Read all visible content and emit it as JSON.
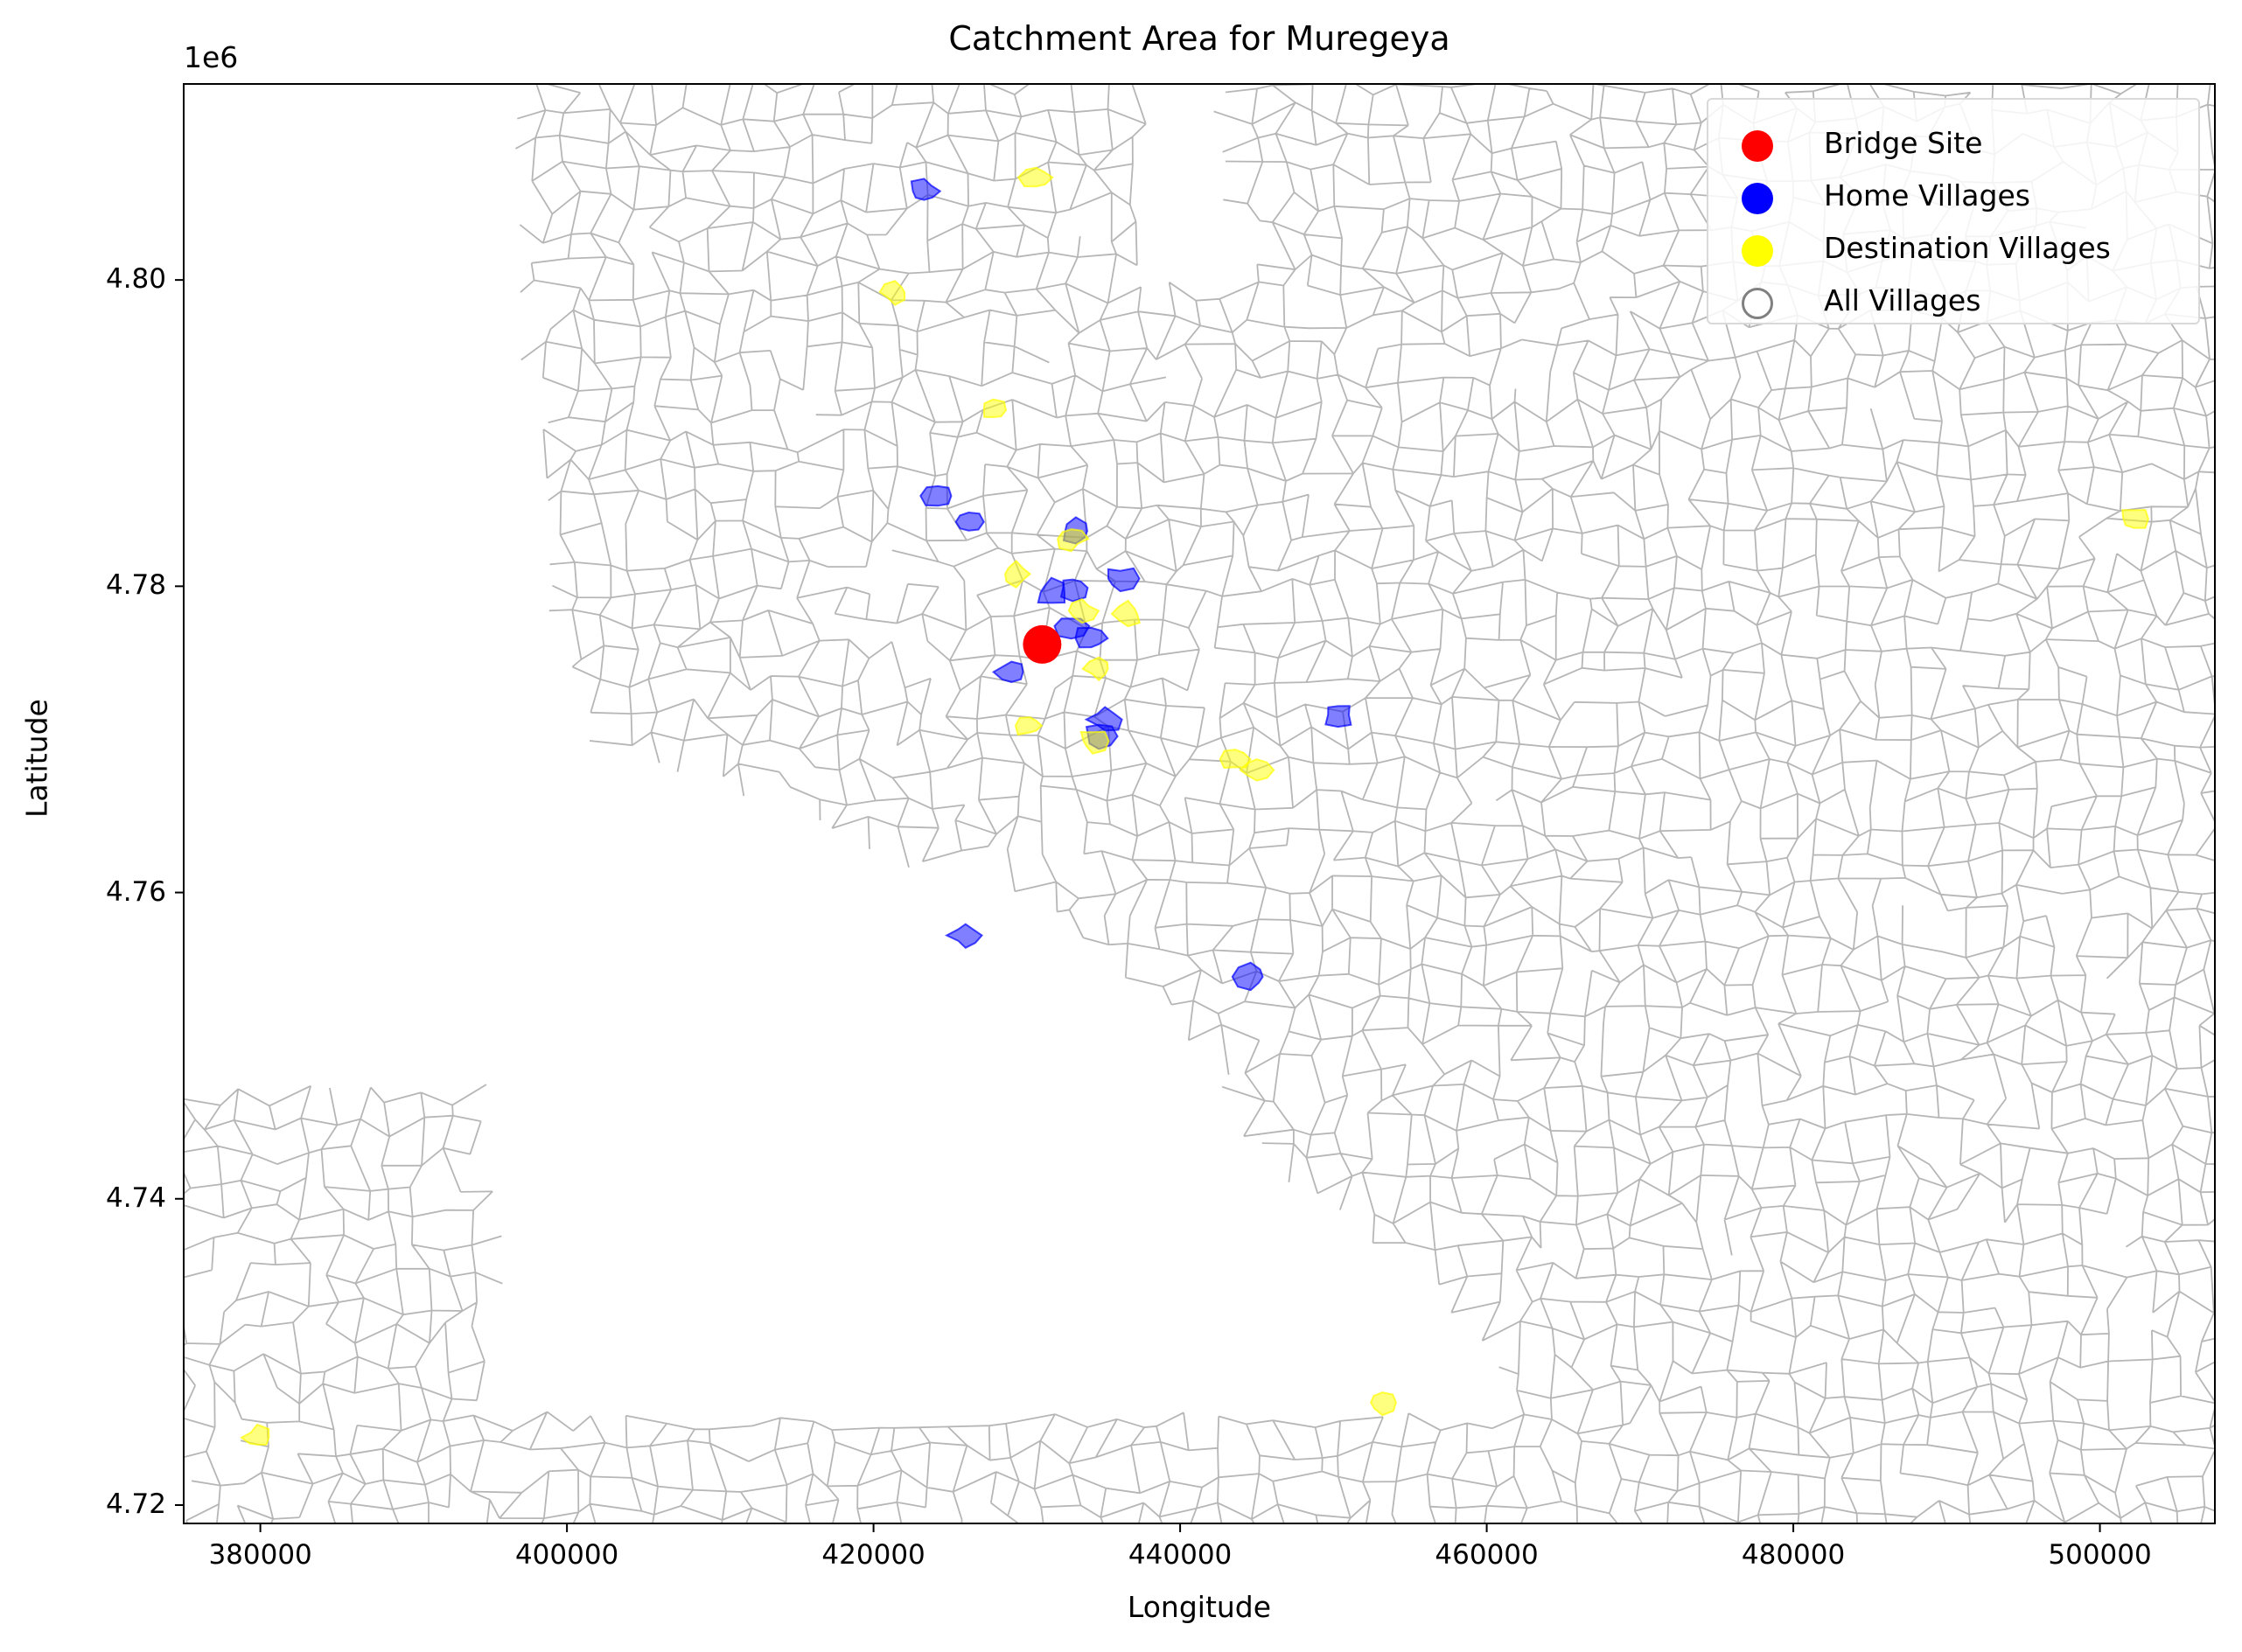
{
  "chart_data": {
    "type": "map",
    "title": "Catchment Area for Muregeya",
    "xlabel": "Longitude",
    "ylabel": "Latitude",
    "y_offset_label": "1e6",
    "xlim": [
      375000,
      507500
    ],
    "ylim": [
      4718800,
      4812800
    ],
    "x_ticks": [
      {
        "value": 380000,
        "label": "380000"
      },
      {
        "value": 400000,
        "label": "400000"
      },
      {
        "value": 420000,
        "label": "420000"
      },
      {
        "value": 440000,
        "label": "440000"
      },
      {
        "value": 460000,
        "label": "460000"
      },
      {
        "value": 480000,
        "label": "480000"
      },
      {
        "value": 500000,
        "label": "500000"
      }
    ],
    "y_ticks": [
      {
        "value": 4720000,
        "label": "4.72"
      },
      {
        "value": 4740000,
        "label": "4.74"
      },
      {
        "value": 4760000,
        "label": "4.76"
      },
      {
        "value": 4780000,
        "label": "4.78"
      },
      {
        "value": 4800000,
        "label": "4.80"
      }
    ],
    "legend": {
      "placement": "top-right",
      "entries": [
        {
          "label": "Bridge Site",
          "color": "#ff0000",
          "style": "filled"
        },
        {
          "label": "Home Villages",
          "color": "#0000ff",
          "style": "filled"
        },
        {
          "label": "Destination Villages",
          "color": "#ffff00",
          "style": "filled"
        },
        {
          "label": "All Villages",
          "color": "#808080",
          "style": "hollow"
        }
      ]
    },
    "bridge_site": {
      "x": 431000,
      "y": 4776200
    },
    "home_villages": [
      {
        "x": 423300,
        "y": 4805800
      },
      {
        "x": 424200,
        "y": 4785900
      },
      {
        "x": 426200,
        "y": 4784200
      },
      {
        "x": 433200,
        "y": 4783600
      },
      {
        "x": 436100,
        "y": 4780500
      },
      {
        "x": 431600,
        "y": 4779600
      },
      {
        "x": 433000,
        "y": 4779900
      },
      {
        "x": 434200,
        "y": 4776600
      },
      {
        "x": 429000,
        "y": 4774400
      },
      {
        "x": 432900,
        "y": 4777400
      },
      {
        "x": 435100,
        "y": 4771300
      },
      {
        "x": 434700,
        "y": 4770200
      },
      {
        "x": 450300,
        "y": 4771600
      },
      {
        "x": 426000,
        "y": 4757200
      },
      {
        "x": 444600,
        "y": 4754500
      }
    ],
    "destination_villages": [
      {
        "x": 430600,
        "y": 4806700
      },
      {
        "x": 421400,
        "y": 4799200
      },
      {
        "x": 427800,
        "y": 4791500
      },
      {
        "x": 429300,
        "y": 4780800
      },
      {
        "x": 432900,
        "y": 4783100
      },
      {
        "x": 436600,
        "y": 4778200
      },
      {
        "x": 433600,
        "y": 4778400
      },
      {
        "x": 434700,
        "y": 4774600
      },
      {
        "x": 430200,
        "y": 4770900
      },
      {
        "x": 434300,
        "y": 4769900
      },
      {
        "x": 445000,
        "y": 4768000
      },
      {
        "x": 443600,
        "y": 4768700
      },
      {
        "x": 453200,
        "y": 4726700
      },
      {
        "x": 379800,
        "y": 4724400
      },
      {
        "x": 502200,
        "y": 4784400
      }
    ]
  }
}
